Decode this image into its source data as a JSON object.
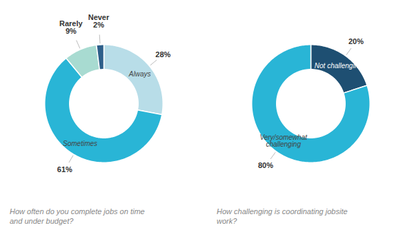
{
  "chart_data": [
    {
      "type": "pie",
      "categories": [
        "Always",
        "Sometimes",
        "Rarely",
        "Never"
      ],
      "values": [
        28,
        61,
        9,
        2
      ],
      "value_labels": [
        "28%",
        "61%",
        "9%",
        "2%"
      ],
      "colors": [
        "#b8dde8",
        "#29b5d6",
        "#a8dbd1",
        "#2d5f8a"
      ],
      "data_labels": true,
      "annotations": [
        "How often do you complete jobs on time",
        "and under budget?"
      ]
    },
    {
      "type": "pie",
      "categories": [
        "Not challenging",
        "Very/somewhat\nchallenging"
      ],
      "values": [
        20,
        80
      ],
      "value_labels": [
        "20%",
        "80%"
      ],
      "colors": [
        "#1e4f72",
        "#29b5d6"
      ],
      "data_labels": true,
      "annotations": [
        "How challenging is coordinating jobsite",
        "work?"
      ]
    }
  ]
}
